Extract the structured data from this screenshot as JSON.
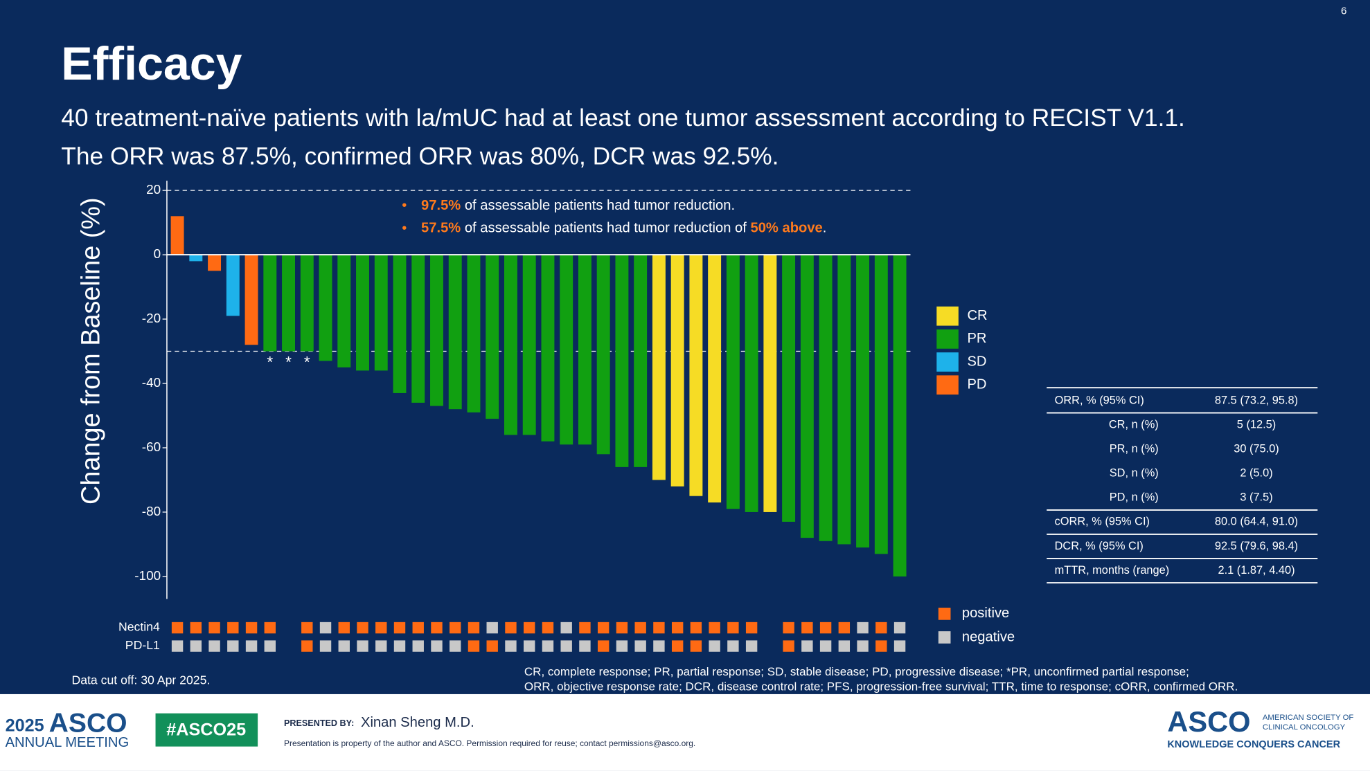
{
  "slide": {
    "number": "6",
    "title": "Efficacy",
    "subtitle": [
      "40 treatment-naïve patients with la/mUC had at least one tumor assessment according to RECIST V1.1.",
      "The ORR was 87.5%, confirmed ORR was 80%, DCR was 92.5%."
    ],
    "callouts": [
      [
        "97.5%",
        " of assessable patients had tumor reduction."
      ],
      [
        "57.5%",
        " of assessable patients had tumor reduction of ",
        "50% above",
        "."
      ]
    ],
    "cutoff": "Data cut off: 30 Apr 2025.",
    "footnote": [
      "CR, complete response; PR, partial response; SD, stable disease; PD, progressive disease; *PR, unconfirmed partial response;",
      "ORR, objective response rate; DCR, disease control rate; PFS, progression-free survival; TTR, time to response; cORR, confirmed ORR."
    ],
    "table": {
      "rows": [
        [
          "ORR, % (95% CI)",
          "87.5 (73.2, 95.8)"
        ],
        [
          "CR, n (%)",
          "5 (12.5)"
        ],
        [
          "PR, n (%)",
          "30 (75.0)"
        ],
        [
          "SD, n (%)",
          "2 (5.0)"
        ],
        [
          "PD, n (%)",
          "3 (7.5)"
        ],
        [
          "cORR, % (95% CI)",
          "80.0 (64.4, 91.0)"
        ],
        [
          "DCR, % (95% CI)",
          "92.5 (79.6, 98.4)"
        ],
        [
          "mTTR, months (range)",
          "2.1 (1.87, 4.40)"
        ]
      ]
    },
    "footer": {
      "year": "2025",
      "asco": "ASCO",
      "meeting": "ANNUAL MEETING",
      "hashtag": "#ASCO25",
      "presented_by": "PRESENTED BY:",
      "presenter": "Xinan Sheng M.D.",
      "notice": "Presentation is property of the author and ASCO. Permission required for reuse; contact permissions@asco.org.",
      "logo": "ASCO",
      "society": [
        "AMERICAN SOCIETY OF",
        "CLINICAL ONCOLOGY"
      ],
      "tagline": "KNOWLEDGE CONQUERS CANCER"
    }
  },
  "chart_data": {
    "type": "waterfall",
    "y_label": "Change from Baseline (%)",
    "ylim": [
      -107,
      23
    ],
    "yticks": [
      20,
      0,
      -20,
      -40,
      -60,
      -80,
      -100
    ],
    "hlines": [
      20,
      -30
    ],
    "values": [
      12,
      -2,
      -5,
      -19,
      -28,
      -30,
      -30,
      -30,
      -33,
      -35,
      -36,
      -36,
      -43,
      -46,
      -47,
      -48,
      -49,
      -51,
      -56,
      -56,
      -58,
      -59,
      -59,
      -62,
      -66,
      -66,
      -70,
      -72,
      -75,
      -77,
      -79,
      -80,
      -80,
      -83,
      -88,
      -89,
      -90,
      -91,
      -93,
      -100
    ],
    "response": [
      "PD",
      "SD",
      "PD",
      "SD",
      "PD",
      "PR",
      "PR",
      "PR",
      "PR",
      "PR",
      "PR",
      "PR",
      "PR",
      "PR",
      "PR",
      "PR",
      "PR",
      "PR",
      "PR",
      "PR",
      "PR",
      "PR",
      "PR",
      "PR",
      "PR",
      "PR",
      "CR",
      "CR",
      "CR",
      "CR",
      "PR",
      "PR",
      "CR",
      "PR",
      "PR",
      "PR",
      "PR",
      "PR",
      "PR",
      "PR"
    ],
    "notes": [
      null,
      null,
      null,
      null,
      null,
      "*",
      "*",
      "*",
      null,
      null,
      null,
      null,
      null,
      null,
      null,
      null,
      null,
      null,
      null,
      null,
      null,
      null,
      null,
      null,
      null,
      null,
      null,
      null,
      null,
      null,
      null,
      null,
      null,
      null,
      null,
      null,
      null,
      null,
      null,
      null
    ],
    "legend": [
      {
        "name": "CR",
        "color": "#f6dc25"
      },
      {
        "name": "PR",
        "color": "#11a011"
      },
      {
        "name": "SD",
        "color": "#1eb2ea"
      },
      {
        "name": "PD",
        "color": "#ff6a13"
      }
    ],
    "biomarkers": [
      {
        "name": "Nectin4",
        "values": [
          "positive",
          "positive",
          "positive",
          "positive",
          "positive",
          "positive",
          null,
          "positive",
          "negative",
          "positive",
          "positive",
          "positive",
          "positive",
          "positive",
          "positive",
          "positive",
          "positive",
          "negative",
          "positive",
          "positive",
          "positive",
          "negative",
          "positive",
          "positive",
          "positive",
          "positive",
          "positive",
          "positive",
          "positive",
          "positive",
          "positive",
          "positive",
          null,
          "positive",
          "positive",
          "positive",
          "positive",
          "negative",
          "positive",
          "negative"
        ]
      },
      {
        "name": "PD-L1",
        "values": [
          "negative",
          "negative",
          "negative",
          "negative",
          "negative",
          "negative",
          null,
          "positive",
          "negative",
          "negative",
          "negative",
          "negative",
          "negative",
          "negative",
          "negative",
          "negative",
          "positive",
          "positive",
          "negative",
          "negative",
          "negative",
          "negative",
          "negative",
          "positive",
          "negative",
          "negative",
          "negative",
          "positive",
          "positive",
          "negative",
          "negative",
          "negative",
          null,
          "positive",
          "negative",
          "negative",
          "negative",
          "negative",
          "positive",
          "negative"
        ]
      }
    ],
    "biomarker_legend": [
      {
        "name": "positive",
        "color": "#ff6a13"
      },
      {
        "name": "negative",
        "color": "#c8c8c8"
      }
    ]
  }
}
